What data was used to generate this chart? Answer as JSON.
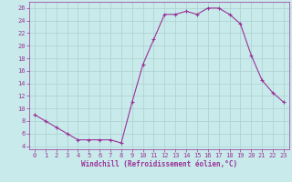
{
  "x": [
    0,
    1,
    2,
    3,
    4,
    5,
    6,
    7,
    8,
    9,
    10,
    11,
    12,
    13,
    14,
    15,
    16,
    17,
    18,
    19,
    20,
    21,
    22,
    23
  ],
  "y": [
    9,
    8,
    7,
    6,
    5,
    5,
    5,
    5,
    4.5,
    11,
    17,
    21,
    25,
    25,
    25.5,
    25,
    26,
    26,
    25,
    23.5,
    18.5,
    14.5,
    12.5,
    11
  ],
  "line_color": "#993399",
  "marker": "+",
  "marker_size": 3,
  "bg_color": "#c8eaea",
  "grid_color": "#b0d4d4",
  "xlabel": "Windchill (Refroidissement éolien,°C)",
  "xlabel_color": "#993399",
  "tick_color": "#993399",
  "label_color": "#993399",
  "ylim": [
    3.5,
    27
  ],
  "xlim": [
    -0.5,
    23.5
  ],
  "yticks": [
    4,
    6,
    8,
    10,
    12,
    14,
    16,
    18,
    20,
    22,
    24,
    26
  ],
  "xticks": [
    0,
    1,
    2,
    3,
    4,
    5,
    6,
    7,
    8,
    9,
    10,
    11,
    12,
    13,
    14,
    15,
    16,
    17,
    18,
    19,
    20,
    21,
    22,
    23
  ],
  "tick_fontsize": 5.0,
  "xlabel_fontsize": 5.5,
  "linewidth": 0.8,
  "markeredgewidth": 0.8
}
